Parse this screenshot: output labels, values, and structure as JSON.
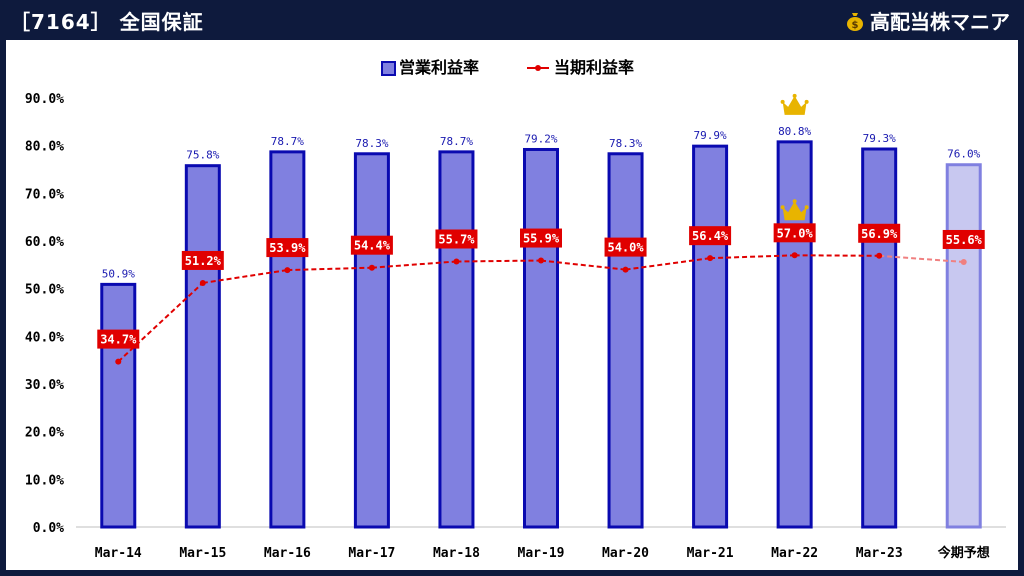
{
  "header": {
    "title": "［7164］ 全国保証",
    "brand": "高配当株マニア",
    "brand_icon": "money-bag-icon"
  },
  "colors": {
    "background": "#0e1a3d",
    "bar_fill": "#8080e0",
    "bar_stroke": "#0a0ab0",
    "forecast_fill": "#c8c8f0",
    "forecast_stroke": "#8080e0",
    "line": "#e00000",
    "forecast_line": "#f08080",
    "crown": "#e8b400"
  },
  "chart_data": {
    "type": "bar",
    "categories": [
      "Mar-14",
      "Mar-15",
      "Mar-16",
      "Mar-17",
      "Mar-18",
      "Mar-19",
      "Mar-20",
      "Mar-21",
      "Mar-22",
      "Mar-23",
      "今期予想"
    ],
    "series": [
      {
        "name": "営業利益率",
        "type": "bar",
        "values": [
          50.9,
          75.8,
          78.7,
          78.3,
          78.7,
          79.2,
          78.3,
          79.9,
          80.8,
          79.3,
          76.0
        ],
        "labels": [
          "50.9%",
          "75.8%",
          "78.7%",
          "78.3%",
          "78.7%",
          "79.2%",
          "78.3%",
          "79.9%",
          "80.8%",
          "79.3%",
          "76.0%"
        ]
      },
      {
        "name": "当期利益率",
        "type": "line",
        "values": [
          34.7,
          51.2,
          53.9,
          54.4,
          55.7,
          55.9,
          54.0,
          56.4,
          57.0,
          56.9,
          55.6
        ],
        "labels": [
          "34.7%",
          "51.2%",
          "53.9%",
          "54.4%",
          "55.7%",
          "55.9%",
          "54.0%",
          "56.4%",
          "57.0%",
          "56.9%",
          "55.6%"
        ]
      }
    ],
    "forecast_index": 10,
    "highlight_index": 8,
    "ylim": [
      0,
      90
    ],
    "yticks": [
      "0.0%",
      "10.0%",
      "20.0%",
      "30.0%",
      "40.0%",
      "50.0%",
      "60.0%",
      "70.0%",
      "80.0%",
      "90.0%"
    ],
    "ytick_values": [
      0,
      10,
      20,
      30,
      40,
      50,
      60,
      70,
      80,
      90
    ],
    "legend_position": "top-center",
    "grid": false
  }
}
